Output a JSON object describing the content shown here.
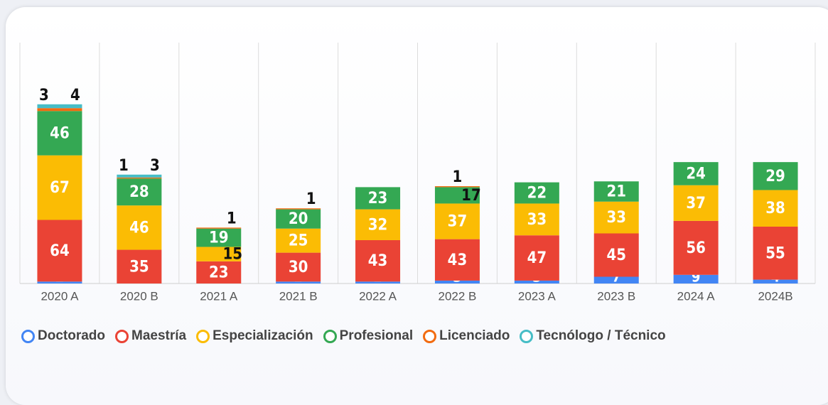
{
  "chart_data": {
    "type": "stacked_bar",
    "categories": [
      "2020 A",
      "2020 B",
      "2021 A",
      "2021 B",
      "2022 A",
      "2022 B",
      "2023 A",
      "2023 B",
      "2024 A",
      "2024B"
    ],
    "series": [
      {
        "name": "Doctorado",
        "color": "#4285f4",
        "values": [
          2,
          0,
          0,
          2,
          2,
          3,
          3,
          7,
          9,
          4
        ]
      },
      {
        "name": "Maestría",
        "color": "#ea4335",
        "values": [
          64,
          35,
          23,
          30,
          43,
          43,
          47,
          45,
          56,
          55
        ]
      },
      {
        "name": "Especialización",
        "color": "#fbbc04",
        "values": [
          67,
          46,
          15,
          25,
          32,
          37,
          33,
          33,
          37,
          38
        ]
      },
      {
        "name": "Profesional",
        "color": "#34a853",
        "values": [
          46,
          28,
          19,
          20,
          23,
          17,
          22,
          21,
          24,
          29
        ]
      },
      {
        "name": "Licenciado",
        "color": "#f26b10",
        "values": [
          3,
          1,
          1,
          1,
          0,
          1,
          0,
          0,
          0,
          0
        ]
      },
      {
        "name": "Tecnólogo / Técnico",
        "color": "#46bdc6",
        "values": [
          4,
          3,
          0,
          0,
          0,
          0,
          0,
          0,
          0,
          0
        ]
      }
    ],
    "ylim": [
      0,
      250
    ]
  }
}
